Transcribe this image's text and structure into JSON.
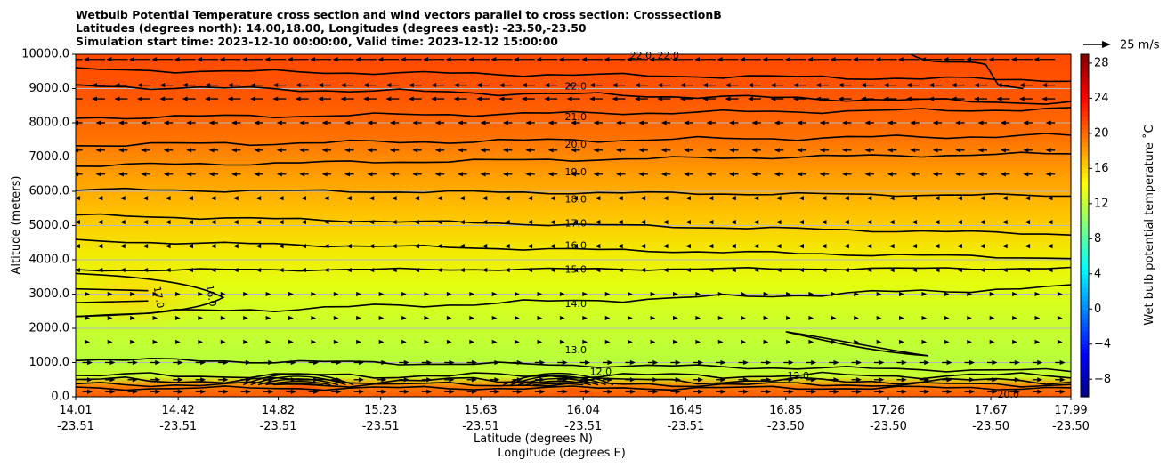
{
  "title_lines": [
    "Wetbulb Potential Temperature cross section and wind vectors parallel to cross section: CrosssectionB",
    "Latitudes (degrees north): 14.00,18.00, Longitudes (degrees east): -23.50,-23.50",
    "Simulation start time: 2023-12-10 00:00:00, Valid time: 2023-12-12 15:00:00"
  ],
  "chart_data": {
    "type": "heatmap",
    "subtype": "cross-section filled contour with contour lines and wind vectors",
    "xlabel_lines": [
      "Latitude (degrees N)",
      "Longitude (degrees E)"
    ],
    "ylabel": "Altitude (meters)",
    "ylim": [
      0,
      10000
    ],
    "y_ticks": [
      0,
      1000,
      2000,
      3000,
      4000,
      5000,
      6000,
      7000,
      8000,
      9000,
      10000
    ],
    "y_tick_labels": [
      "0.0",
      "1000.0",
      "2000.0",
      "3000.0",
      "4000.0",
      "5000.0",
      "6000.0",
      "7000.0",
      "8000.0",
      "9000.0",
      "10000.0"
    ],
    "x_ticks": [
      {
        "lat": "14.01",
        "lon": "-23.51"
      },
      {
        "lat": "14.42",
        "lon": "-23.51"
      },
      {
        "lat": "14.82",
        "lon": "-23.51"
      },
      {
        "lat": "15.23",
        "lon": "-23.51"
      },
      {
        "lat": "15.63",
        "lon": "-23.51"
      },
      {
        "lat": "16.04",
        "lon": "-23.51"
      },
      {
        "lat": "16.45",
        "lon": "-23.51"
      },
      {
        "lat": "16.85",
        "lon": "-23.50"
      },
      {
        "lat": "17.26",
        "lon": "-23.50"
      },
      {
        "lat": "17.67",
        "lon": "-23.50"
      },
      {
        "lat": "17.99",
        "lon": "-23.50"
      }
    ],
    "grid": "horizontal",
    "colorbar": {
      "label": "Wet bulb potential temperature ˚C",
      "range": [
        -10,
        29
      ],
      "ticks": [
        -8,
        -4,
        0,
        4,
        8,
        12,
        16,
        20,
        24,
        28
      ],
      "tick_labels": [
        "−8",
        "−4",
        "0",
        "4",
        "8",
        "12",
        "16",
        "20",
        "24",
        "28"
      ],
      "colormap": "jet"
    },
    "quiver_key": {
      "label": "25 m/s",
      "speed": 25
    },
    "contour_labels": [
      {
        "text": "22.0",
        "lat": 16.01,
        "alt": 9050
      },
      {
        "text": "21.0",
        "lat": 16.01,
        "alt": 8150
      },
      {
        "text": "20.0",
        "lat": 16.01,
        "alt": 7350
      },
      {
        "text": "19.0",
        "lat": 16.01,
        "alt": 6550
      },
      {
        "text": "18.0",
        "lat": 16.01,
        "alt": 5750
      },
      {
        "text": "17.0",
        "lat": 16.01,
        "alt": 5050
      },
      {
        "text": "16.0",
        "lat": 16.01,
        "alt": 4400
      },
      {
        "text": "15.0",
        "lat": 16.01,
        "alt": 3700
      },
      {
        "text": "14.0",
        "lat": 16.01,
        "alt": 2700
      },
      {
        "text": "13.0",
        "lat": 16.01,
        "alt": 1350
      },
      {
        "text": "17.0",
        "lat": 14.34,
        "alt": 2900
      },
      {
        "text": "16.0",
        "lat": 14.55,
        "alt": 2950
      },
      {
        "text": "12.0",
        "lat": 16.11,
        "alt": 720
      },
      {
        "text": "12.0",
        "lat": 16.9,
        "alt": 600
      },
      {
        "text": "22.0",
        "lat": 16.27,
        "alt": 9950
      },
      {
        "text": "22.0",
        "lat": 16.38,
        "alt": 9950
      },
      {
        "text": "20.0",
        "lat": 17.74,
        "alt": 50
      }
    ]
  }
}
